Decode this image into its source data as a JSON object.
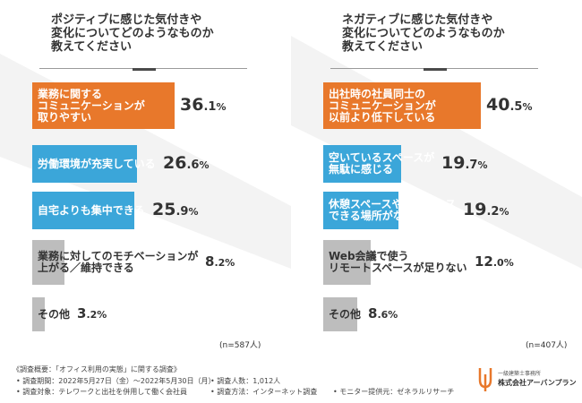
{
  "theme": {
    "orange": "#E8782B",
    "blue": "#3BA6D9",
    "gray": "#BDBDBD"
  },
  "chart_data": [
    {
      "type": "bar",
      "title": "ポジティブに感じた気付きや変化についてどのようなものか教えてください",
      "title_lines": [
        "ポジティブに感じた気付きや",
        "変化についてどのようなものか",
        "教えてください"
      ],
      "categories": [
        "業務に関するコミュニケーションが取りやすい",
        "労働環境が充実している",
        "自宅よりも集中できる",
        "業務に対してのモチベーションが上がる／維持できる",
        "その他"
      ],
      "category_lines": [
        [
          "業務に関する",
          "コミュニケーションが",
          "取りやすい"
        ],
        [
          "労働環境が充実している"
        ],
        [
          "自宅よりも集中できる"
        ],
        [
          "業務に対してのモチベーションが",
          "上がる／維持できる"
        ],
        [
          "その他"
        ]
      ],
      "values": [
        36.1,
        26.6,
        25.9,
        8.2,
        3.2
      ],
      "value_int": [
        "36",
        "26",
        "25",
        "8",
        "3"
      ],
      "value_dec": [
        ".1",
        ".6",
        ".9",
        ".2",
        ".2"
      ],
      "unit": "%",
      "colors": [
        "#E8782B",
        "#3BA6D9",
        "#3BA6D9",
        "#BDBDBD",
        "#BDBDBD"
      ],
      "n_label": "(n=587人)",
      "xlim": [
        0,
        40
      ]
    },
    {
      "type": "bar",
      "title": "ネガティブに感じた気付きや変化についてどのようなものか教えてください",
      "title_lines": [
        "ネガティブに感じた気付きや",
        "変化についてどのようなものか",
        "教えてください"
      ],
      "categories": [
        "出社時の社員同士のコミュニケーションが以前より低下している",
        "空いているスペースが無駄に感じる",
        "休憩スペースやリラックスできる場所がない",
        "Web会議で使うリモートスペースが足りない",
        "その他"
      ],
      "category_lines": [
        [
          "出社時の社員同士の",
          "コミュニケーションが",
          "以前より低下している"
        ],
        [
          "空いているスペースが",
          "無駄に感じる"
        ],
        [
          "休憩スペースやリラックス",
          "できる場所がない"
        ],
        [
          "Web会議で使う",
          "リモートスペースが足りない"
        ],
        [
          "その他"
        ]
      ],
      "values": [
        40.5,
        19.7,
        19.2,
        12.0,
        8.6
      ],
      "value_int": [
        "40",
        "19",
        "19",
        "12",
        "8"
      ],
      "value_dec": [
        ".5",
        ".7",
        ".2",
        ".0",
        ".6"
      ],
      "unit": "%",
      "colors": [
        "#E8782B",
        "#3BA6D9",
        "#3BA6D9",
        "#BDBDBD",
        "#BDBDBD"
      ],
      "n_label": "(n=407人)",
      "xlim": [
        0,
        40
      ]
    }
  ],
  "footer": {
    "heading": "《調査概要：「オフィス利用の実態」に関する調査》",
    "period": "• 調査期間：2022年5月27日（金）～2022年5月30日（月）",
    "count": "• 調査人数：1,012人",
    "target": "• 調査対象：テレワークと出社を併用して働く会社員",
    "method": "• 調査方法：インターネット調査",
    "provider": "• モニター提供元：ゼネラルリサーチ"
  },
  "brand": {
    "tagline": "一級建築士事務所",
    "name": "株式会社アーバンプラン"
  }
}
